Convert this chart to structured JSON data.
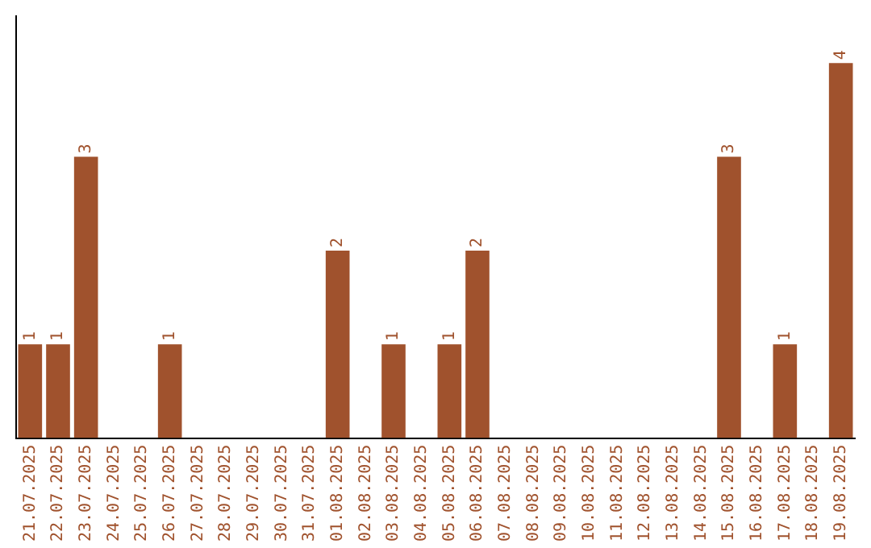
{
  "chart_data": {
    "type": "bar",
    "categories": [
      "21.07.2025",
      "22.07.2025",
      "23.07.2025",
      "24.07.2025",
      "25.07.2025",
      "26.07.2025",
      "27.07.2025",
      "28.07.2025",
      "29.07.2025",
      "30.07.2025",
      "31.07.2025",
      "01.08.2025",
      "02.08.2025",
      "03.08.2025",
      "04.08.2025",
      "05.08.2025",
      "06.08.2025",
      "07.08.2025",
      "08.08.2025",
      "09.08.2025",
      "10.08.2025",
      "11.08.2025",
      "12.08.2025",
      "13.08.2025",
      "14.08.2025",
      "15.08.2025",
      "16.08.2025",
      "17.08.2025",
      "18.08.2025",
      "19.08.2025"
    ],
    "values": [
      1,
      1,
      3,
      0,
      0,
      1,
      0,
      0,
      0,
      0,
      0,
      2,
      0,
      1,
      0,
      1,
      2,
      0,
      0,
      0,
      0,
      0,
      0,
      0,
      0,
      3,
      0,
      1,
      0,
      4
    ],
    "value_labels": [
      "1",
      "1",
      "3",
      null,
      null,
      "1",
      null,
      null,
      null,
      null,
      null,
      "2",
      null,
      "1",
      null,
      "1",
      "2",
      null,
      null,
      null,
      null,
      null,
      null,
      null,
      null,
      "3",
      null,
      "1",
      null,
      "4"
    ],
    "color": "#a0522d",
    "tick_labels": "x",
    "grid": false,
    "legend": false
  }
}
